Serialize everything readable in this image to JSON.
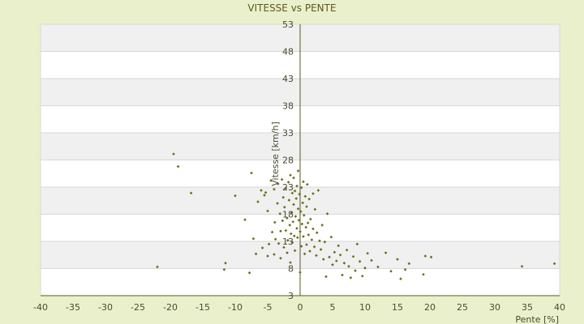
{
  "chart_data": {
    "type": "scatter",
    "title": "VITESSE vs PENTE",
    "xlabel": "Pente [%]",
    "ylabel": "Vitesse [km/h]",
    "xlim": [
      -40,
      40
    ],
    "ylim": [
      3,
      53
    ],
    "xticks": [
      -40,
      -35,
      -30,
      -25,
      -20,
      -15,
      -10,
      -5,
      0,
      5,
      10,
      15,
      20,
      25,
      30,
      35,
      40
    ],
    "yticks": [
      3,
      8,
      13,
      18,
      23,
      28,
      33,
      38,
      43,
      48,
      53
    ],
    "grid": "horizontal bands",
    "legend": "none",
    "colors": {
      "background": "#ebf0cc",
      "plot": "#ffffff",
      "band": "#f0f0f0",
      "axis": "#5a5a1e",
      "marker": "#6b6b1a"
    },
    "series": [
      {
        "points": [
          [
            -19.5,
            29.1
          ],
          [
            -18.8,
            26.8
          ],
          [
            -16.8,
            21.9
          ],
          [
            -22.0,
            8.3
          ],
          [
            -11.5,
            9.0
          ],
          [
            -11.7,
            7.8
          ],
          [
            -10.0,
            21.4
          ],
          [
            -8.5,
            17.0
          ],
          [
            -7.8,
            7.2
          ],
          [
            -7.5,
            25.6
          ],
          [
            -7.2,
            13.5
          ],
          [
            -6.8,
            10.7
          ],
          [
            -6.5,
            20.3
          ],
          [
            -6.0,
            22.4
          ],
          [
            -5.8,
            11.8
          ],
          [
            -5.5,
            21.5
          ],
          [
            -5.3,
            22.0
          ],
          [
            -5.0,
            10.3
          ],
          [
            -5.0,
            18.6
          ],
          [
            -4.8,
            12.5
          ],
          [
            -4.5,
            24.2
          ],
          [
            -4.3,
            14.7
          ],
          [
            -4.0,
            10.6
          ],
          [
            -4.0,
            22.6
          ],
          [
            -3.9,
            16.5
          ],
          [
            -3.8,
            13.4
          ],
          [
            -3.5,
            20.0
          ],
          [
            -3.4,
            23.6
          ],
          [
            -3.3,
            12.6
          ],
          [
            -3.1,
            18.1
          ],
          [
            -3.0,
            9.9
          ],
          [
            -3.0,
            14.9
          ],
          [
            -2.8,
            24.4
          ],
          [
            -2.7,
            16.8
          ],
          [
            -2.6,
            21.1
          ],
          [
            -2.5,
            11.9
          ],
          [
            -2.4,
            19.3
          ],
          [
            -2.2,
            15.0
          ],
          [
            -2.2,
            22.8
          ],
          [
            -2.0,
            17.3
          ],
          [
            -2.0,
            10.9
          ],
          [
            -1.9,
            13.2
          ],
          [
            -1.8,
            23.9
          ],
          [
            -1.7,
            20.6
          ],
          [
            -1.6,
            16.0
          ],
          [
            -1.5,
            9.1
          ],
          [
            -1.5,
            25.2
          ],
          [
            -1.4,
            14.4
          ],
          [
            -1.3,
            18.3
          ],
          [
            -1.2,
            21.9
          ],
          [
            -1.2,
            12.8
          ],
          [
            -1.1,
            16.6
          ],
          [
            -1.0,
            24.7
          ],
          [
            -1.0,
            19.8
          ],
          [
            -0.9,
            14.0
          ],
          [
            -0.8,
            22.3
          ],
          [
            -0.8,
            11.3
          ],
          [
            -0.7,
            17.6
          ],
          [
            -0.6,
            20.9
          ],
          [
            -0.5,
            15.4
          ],
          [
            -0.5,
            23.2
          ],
          [
            -0.4,
            13.7
          ],
          [
            -0.3,
            19.0
          ],
          [
            -0.3,
            26.0
          ],
          [
            -0.2,
            16.9
          ],
          [
            -0.1,
            21.7
          ],
          [
            0.0,
            7.3
          ],
          [
            0.0,
            14.8
          ],
          [
            0.1,
            18.5
          ],
          [
            0.2,
            22.9
          ],
          [
            0.2,
            12.1
          ],
          [
            0.3,
            16.2
          ],
          [
            0.4,
            20.1
          ],
          [
            0.5,
            24.0
          ],
          [
            0.5,
            13.9
          ],
          [
            0.6,
            17.8
          ],
          [
            0.7,
            10.7
          ],
          [
            0.8,
            21.3
          ],
          [
            0.9,
            15.6
          ],
          [
            1.0,
            19.4
          ],
          [
            1.0,
            12.4
          ],
          [
            1.1,
            23.5
          ],
          [
            1.2,
            16.4
          ],
          [
            1.3,
            14.2
          ],
          [
            1.4,
            20.8
          ],
          [
            1.5,
            11.2
          ],
          [
            1.6,
            17.1
          ],
          [
            1.8,
            13.3
          ],
          [
            2.0,
            21.8
          ],
          [
            2.0,
            15.3
          ],
          [
            2.2,
            12.0
          ],
          [
            2.3,
            18.9
          ],
          [
            2.5,
            10.4
          ],
          [
            2.6,
            14.6
          ],
          [
            2.8,
            22.4
          ],
          [
            3.0,
            13.1
          ],
          [
            3.2,
            11.5
          ],
          [
            3.4,
            16.0
          ],
          [
            3.6,
            9.7
          ],
          [
            3.8,
            12.9
          ],
          [
            4.0,
            6.5
          ],
          [
            4.2,
            18.1
          ],
          [
            4.5,
            10.1
          ],
          [
            4.8,
            13.8
          ],
          [
            5.0,
            8.7
          ],
          [
            5.3,
            11.0
          ],
          [
            5.6,
            9.4
          ],
          [
            5.9,
            12.2
          ],
          [
            6.2,
            10.5
          ],
          [
            6.5,
            6.8
          ],
          [
            6.8,
            9.0
          ],
          [
            7.2,
            11.4
          ],
          [
            7.5,
            8.4
          ],
          [
            7.8,
            6.3
          ],
          [
            8.2,
            10.2
          ],
          [
            8.5,
            7.6
          ],
          [
            8.8,
            12.5
          ],
          [
            9.2,
            9.3
          ],
          [
            9.6,
            6.6
          ],
          [
            10.0,
            8.1
          ],
          [
            10.4,
            10.8
          ],
          [
            11.0,
            9.5
          ],
          [
            12.0,
            8.3
          ],
          [
            13.2,
            10.9
          ],
          [
            14.0,
            7.5
          ],
          [
            15.0,
            9.7
          ],
          [
            15.5,
            6.1
          ],
          [
            16.2,
            7.8
          ],
          [
            16.8,
            8.9
          ],
          [
            19.0,
            6.9
          ],
          [
            19.3,
            10.3
          ],
          [
            20.2,
            10.1
          ],
          [
            34.2,
            8.4
          ],
          [
            39.2,
            8.9
          ]
        ]
      }
    ]
  }
}
